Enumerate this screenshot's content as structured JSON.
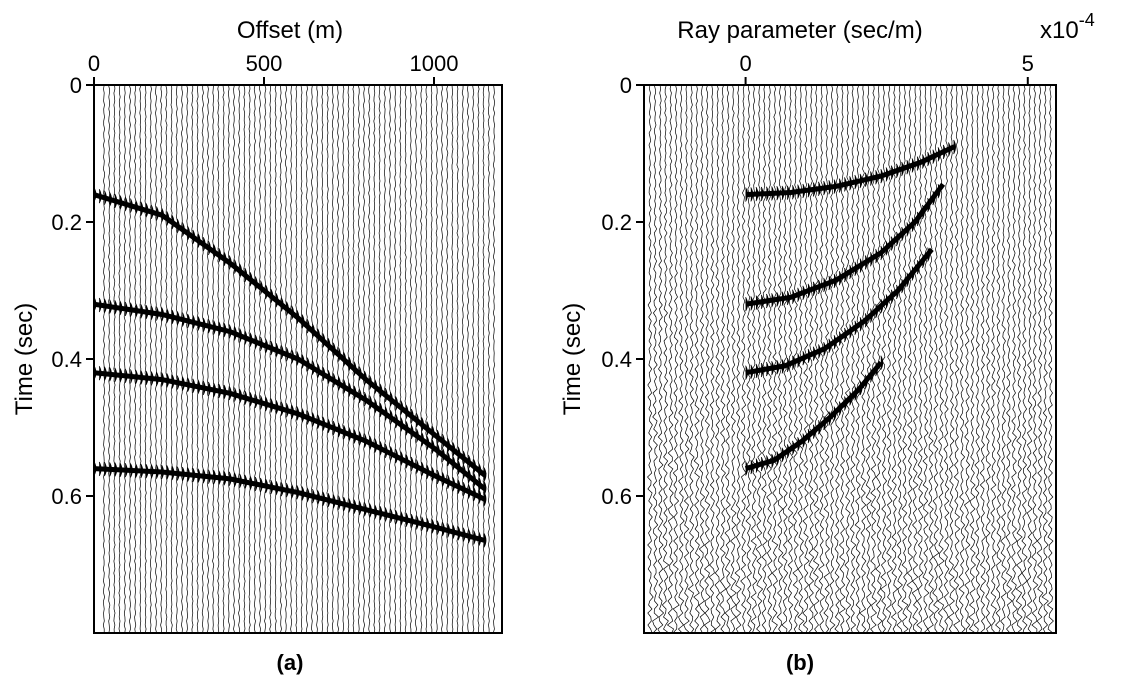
{
  "chart_data": [
    {
      "type": "scatter",
      "panel_label": "(a)",
      "xlabel": "Offset (m)",
      "ylabel": "Time (sec)",
      "x_ticks": [
        "0",
        "500",
        "1000"
      ],
      "y_ticks": [
        "0",
        "0.2",
        "0.4",
        "0.6"
      ],
      "xlim": [
        0,
        1200
      ],
      "ylim": [
        0,
        0.8
      ],
      "y_inverted": true,
      "x_axis_position": "top",
      "series": [
        {
          "x": [
            0,
            200,
            400,
            600,
            800,
            1000,
            1150
          ],
          "y": [
            0.16,
            0.19,
            0.26,
            0.34,
            0.43,
            0.51,
            0.57
          ]
        },
        {
          "x": [
            0,
            200,
            400,
            600,
            800,
            1000,
            1150
          ],
          "y": [
            0.32,
            0.335,
            0.36,
            0.4,
            0.46,
            0.53,
            0.59
          ]
        },
        {
          "x": [
            0,
            200,
            400,
            600,
            800,
            1000,
            1150
          ],
          "y": [
            0.42,
            0.43,
            0.45,
            0.48,
            0.52,
            0.57,
            0.605
          ]
        },
        {
          "x": [
            0,
            200,
            400,
            600,
            800,
            1000,
            1150
          ],
          "y": [
            0.56,
            0.565,
            0.575,
            0.595,
            0.62,
            0.645,
            0.665
          ]
        }
      ]
    },
    {
      "type": "scatter",
      "panel_label": "(b)",
      "xlabel": "Ray parameter (sec/m)",
      "x_scale_label": "x10",
      "x_scale_exponent": "-4",
      "ylabel": "Time (sec)",
      "x_ticks": [
        "0",
        "5"
      ],
      "y_ticks": [
        "0",
        "0.2",
        "0.4",
        "0.6"
      ],
      "xlim": [
        -1.8,
        5.5
      ],
      "ylim": [
        0,
        0.8
      ],
      "y_inverted": true,
      "x_axis_position": "top",
      "series": [
        {
          "x": [
            0,
            0.8,
            1.6,
            2.4,
            3.1,
            3.7
          ],
          "y": [
            0.16,
            0.157,
            0.148,
            0.133,
            0.113,
            0.09
          ]
        },
        {
          "x": [
            0,
            0.8,
            1.6,
            2.4,
            3.0,
            3.5
          ],
          "y": [
            0.32,
            0.31,
            0.285,
            0.245,
            0.2,
            0.145
          ]
        },
        {
          "x": [
            0,
            0.7,
            1.4,
            2.1,
            2.7,
            3.3
          ],
          "y": [
            0.42,
            0.41,
            0.385,
            0.345,
            0.3,
            0.24
          ]
        },
        {
          "x": [
            0,
            0.5,
            1.0,
            1.5,
            2.0,
            2.4
          ],
          "y": [
            0.56,
            0.548,
            0.52,
            0.485,
            0.445,
            0.405
          ]
        }
      ]
    }
  ]
}
